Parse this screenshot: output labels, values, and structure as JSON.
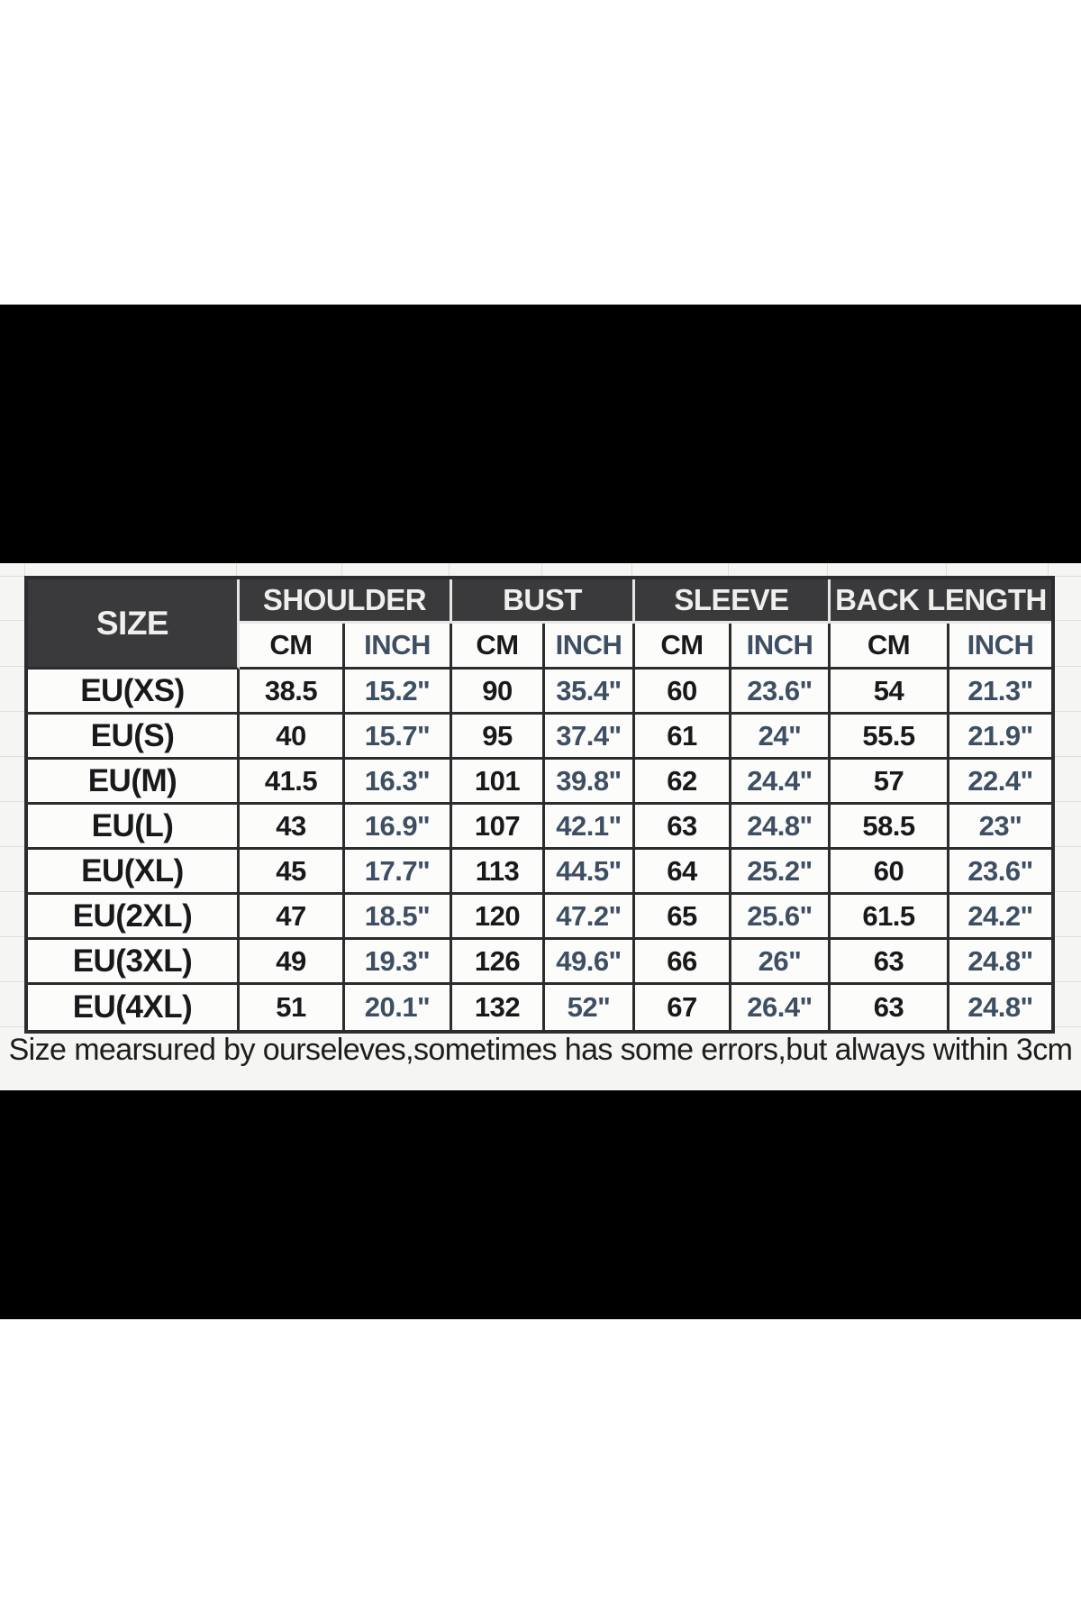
{
  "caption": "Size mearsured by ourseleves,sometimes has some errors,but always within 3cm",
  "colors": {
    "letterbox_band": "#000000",
    "header_bg": "#3a3a3c",
    "header_text": "#f0efed",
    "border_dark": "#2b2c2e",
    "border_light": "#e6e6e4",
    "cm_text": "#18191b",
    "inch_text": "#3e4e63",
    "area_bg": "#f5f5f4",
    "cell_bg": "#fcfcfb"
  },
  "size_chart": {
    "corner_label": "SIZE",
    "groups": [
      {
        "label": "SHOULDER"
      },
      {
        "label": "BUST"
      },
      {
        "label": "SLEEVE"
      },
      {
        "label": "BACK LENGTH"
      }
    ],
    "unit_headers": [
      "CM",
      "INCH",
      "CM",
      "INCH",
      "CM",
      "INCH",
      "CM",
      "INCH"
    ],
    "rows": [
      {
        "size": "EU(XS)",
        "values": [
          "38.5",
          "15.2\"",
          "90",
          "35.4\"",
          "60",
          "23.6\"",
          "54",
          "21.3\""
        ]
      },
      {
        "size": "EU(S)",
        "values": [
          "40",
          "15.7\"",
          "95",
          "37.4\"",
          "61",
          "24\"",
          "55.5",
          "21.9\""
        ]
      },
      {
        "size": "EU(M)",
        "values": [
          "41.5",
          "16.3\"",
          "101",
          "39.8\"",
          "62",
          "24.4\"",
          "57",
          "22.4\""
        ]
      },
      {
        "size": "EU(L)",
        "values": [
          "43",
          "16.9\"",
          "107",
          "42.1\"",
          "63",
          "24.8\"",
          "58.5",
          "23\""
        ]
      },
      {
        "size": "EU(XL)",
        "values": [
          "45",
          "17.7\"",
          "113",
          "44.5\"",
          "64",
          "25.2\"",
          "60",
          "23.6\""
        ]
      },
      {
        "size": "EU(2XL)",
        "values": [
          "47",
          "18.5\"",
          "120",
          "47.2\"",
          "65",
          "25.6\"",
          "61.5",
          "24.2\""
        ]
      },
      {
        "size": "EU(3XL)",
        "values": [
          "49",
          "19.3\"",
          "126",
          "49.6\"",
          "66",
          "26\"",
          "63",
          "24.8\""
        ]
      },
      {
        "size": "EU(4XL)",
        "values": [
          "51",
          "20.1\"",
          "132",
          "52\"",
          "67",
          "26.4\"",
          "63",
          "24.8\""
        ]
      }
    ]
  }
}
